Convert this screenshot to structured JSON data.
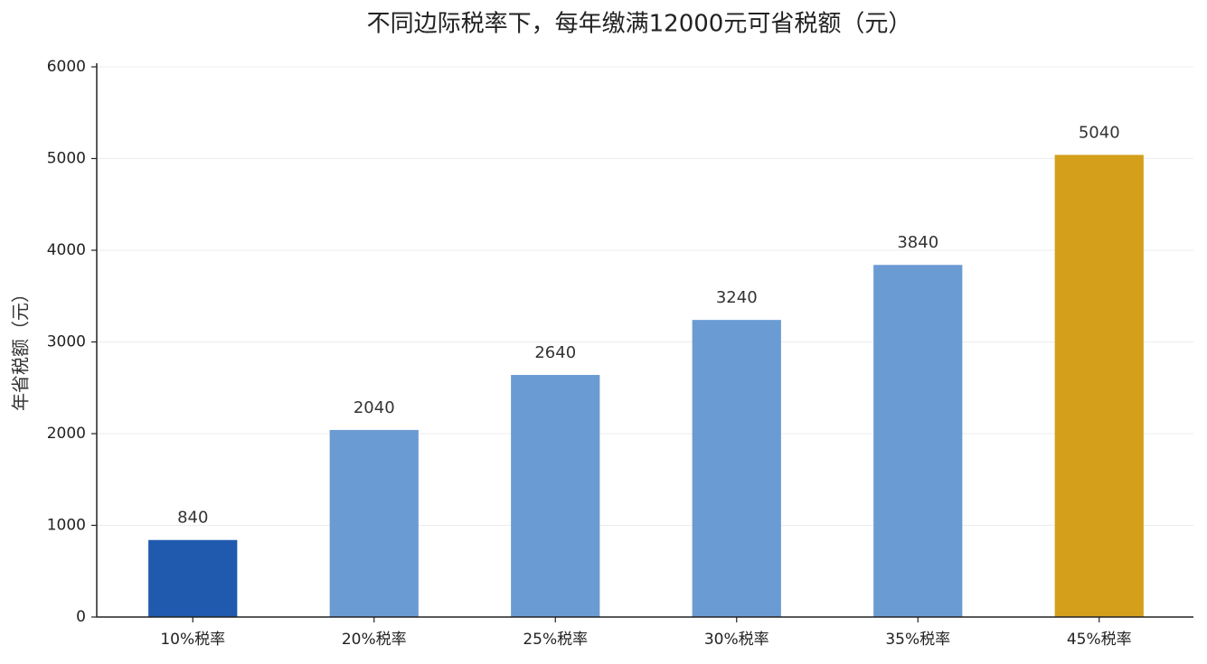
{
  "chart_data": {
    "type": "bar",
    "title": "不同边际税率下，每年缴满12000元可省税额（元）",
    "y_label": "年省税额（元）",
    "categories": [
      "10%税率",
      "20%税率",
      "25%税率",
      "30%税率",
      "35%税率",
      "45%税率"
    ],
    "values": [
      840,
      2040,
      2640,
      3240,
      3840,
      5040
    ],
    "colors": [
      "#1f5aae",
      "#6b9bd3",
      "#6b9bd3",
      "#6b9bd3",
      "#6b9bd3",
      "#d4a01c"
    ],
    "ylim": [
      0,
      6000
    ],
    "yticks": [
      0,
      1000,
      2000,
      3000,
      4000,
      5000,
      6000
    ],
    "grid": true
  }
}
